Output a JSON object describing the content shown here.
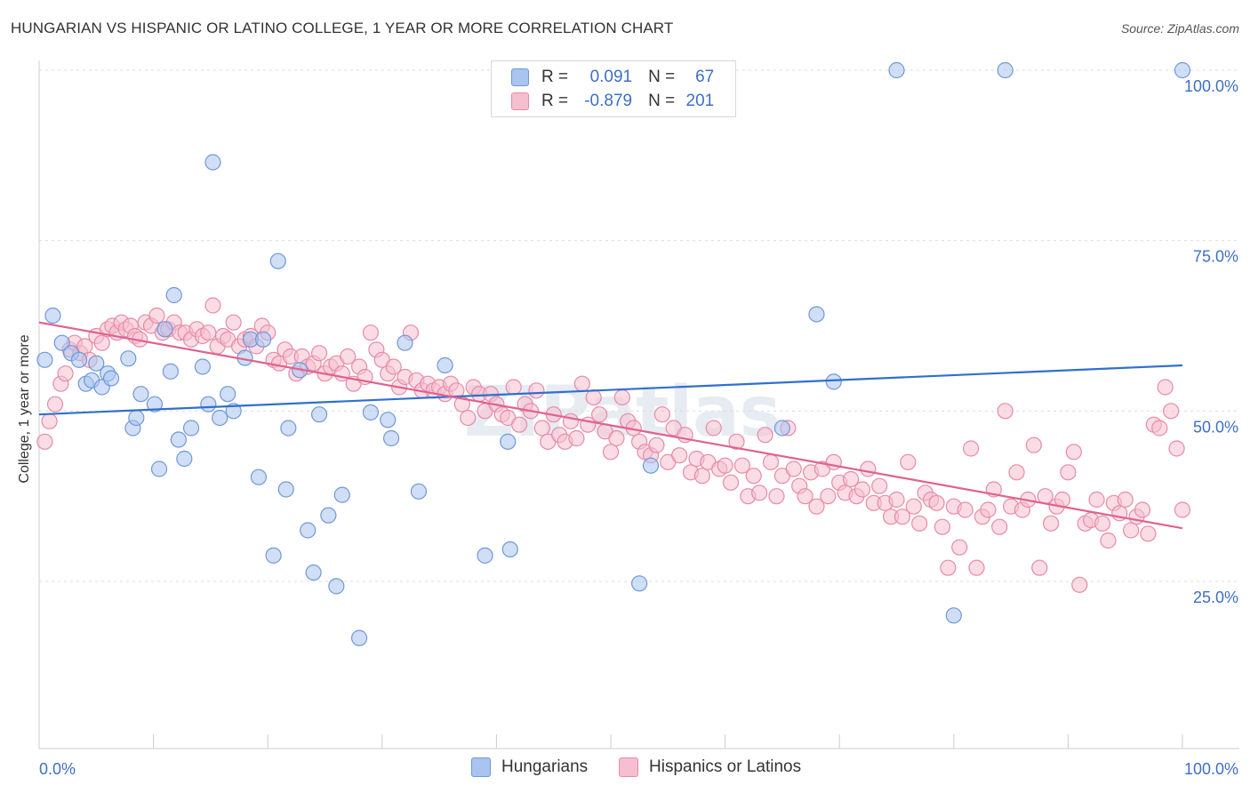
{
  "header": {
    "title": "HUNGARIAN VS HISPANIC OR LATINO COLLEGE, 1 YEAR OR MORE CORRELATION CHART",
    "source": "Source: ZipAtlas.com"
  },
  "watermark": "ZIPatlas",
  "legend_top": {
    "rows": [
      {
        "r_label": "R =",
        "r_value": "0.091",
        "n_label": "N =",
        "n_value": "67",
        "color": "#a9c4ee",
        "border": "#6f98d8"
      },
      {
        "r_label": "R =",
        "r_value": "-0.879",
        "n_label": "N =",
        "n_value": "201",
        "color": "#f6bfd0",
        "border": "#e88aa8"
      }
    ]
  },
  "chart_data": {
    "type": "scatter",
    "title": "HUNGARIAN VS HISPANIC OR LATINO COLLEGE, 1 YEAR OR MORE CORRELATION CHART",
    "xlabel": "",
    "ylabel": "College, 1 year or more",
    "xlim": [
      0,
      100
    ],
    "ylim": [
      0,
      104
    ],
    "x_tick_labels": [
      "0.0%",
      "100.0%"
    ],
    "y_tick_labels": [
      "25.0%",
      "50.0%",
      "75.0%",
      "100.0%"
    ],
    "y_ticks": [
      25,
      50,
      75,
      100
    ],
    "grid": true,
    "legend_position": "bottom",
    "series": [
      {
        "name": "Hungarians",
        "color": "#a9c4ee",
        "stroke": "#6f98d8",
        "trend": {
          "x": [
            0,
            100
          ],
          "y": [
            49.5,
            56.7
          ],
          "color": "#2f6fd0"
        },
        "points": [
          [
            0.5,
            57.5
          ],
          [
            1.2,
            64.0
          ],
          [
            2.0,
            60.0
          ],
          [
            2.8,
            58.5
          ],
          [
            3.5,
            57.5
          ],
          [
            4.1,
            54.0
          ],
          [
            4.6,
            54.5
          ],
          [
            5.0,
            57.0
          ],
          [
            5.5,
            53.5
          ],
          [
            6.0,
            55.5
          ],
          [
            6.3,
            54.8
          ],
          [
            7.8,
            57.7
          ],
          [
            8.2,
            47.5
          ],
          [
            8.5,
            49.0
          ],
          [
            8.9,
            52.5
          ],
          [
            10.1,
            51.0
          ],
          [
            10.5,
            41.5
          ],
          [
            11.0,
            62.0
          ],
          [
            11.5,
            55.8
          ],
          [
            11.8,
            67.0
          ],
          [
            12.2,
            45.8
          ],
          [
            12.7,
            43.0
          ],
          [
            13.3,
            47.5
          ],
          [
            14.3,
            56.5
          ],
          [
            14.8,
            51.0
          ],
          [
            15.2,
            86.5
          ],
          [
            15.8,
            49.0
          ],
          [
            16.5,
            52.5
          ],
          [
            17.0,
            50.0
          ],
          [
            18.0,
            57.8
          ],
          [
            18.5,
            60.5
          ],
          [
            19.2,
            40.3
          ],
          [
            19.6,
            60.5
          ],
          [
            20.5,
            28.8
          ],
          [
            20.9,
            72.0
          ],
          [
            21.6,
            38.5
          ],
          [
            21.8,
            47.5
          ],
          [
            22.8,
            56.0
          ],
          [
            23.5,
            32.5
          ],
          [
            24.0,
            26.3
          ],
          [
            24.5,
            49.5
          ],
          [
            25.3,
            34.7
          ],
          [
            26.0,
            24.3
          ],
          [
            26.5,
            37.7
          ],
          [
            28.0,
            16.7
          ],
          [
            29.0,
            49.8
          ],
          [
            30.5,
            48.7
          ],
          [
            30.8,
            46.0
          ],
          [
            32.0,
            60.0
          ],
          [
            33.2,
            38.2
          ],
          [
            35.5,
            56.7
          ],
          [
            39.0,
            28.8
          ],
          [
            41.0,
            45.5
          ],
          [
            41.2,
            29.7
          ],
          [
            52.5,
            24.7
          ],
          [
            53.5,
            42.0
          ],
          [
            65.0,
            47.5
          ],
          [
            68.0,
            64.2
          ],
          [
            69.5,
            54.3
          ],
          [
            75.0,
            100.0
          ],
          [
            80.0,
            20.0
          ],
          [
            84.5,
            100.0
          ],
          [
            100.0,
            100.0
          ]
        ]
      },
      {
        "name": "Hispanics or Latinos",
        "color": "#f6bfd0",
        "stroke": "#e88aa8",
        "trend": {
          "x": [
            0,
            100
          ],
          "y": [
            63.0,
            32.8
          ],
          "color": "#e0628e"
        },
        "points": [
          [
            0.5,
            45.5
          ],
          [
            0.9,
            48.5
          ],
          [
            1.4,
            51.0
          ],
          [
            1.9,
            54.0
          ],
          [
            2.3,
            55.5
          ],
          [
            2.7,
            59.0
          ],
          [
            3.1,
            60.0
          ],
          [
            3.6,
            58.5
          ],
          [
            4.0,
            59.5
          ],
          [
            4.4,
            57.5
          ],
          [
            5.0,
            61.0
          ],
          [
            5.5,
            60.0
          ],
          [
            6.0,
            62.0
          ],
          [
            6.4,
            62.5
          ],
          [
            6.8,
            61.5
          ],
          [
            7.2,
            63.0
          ],
          [
            7.6,
            62.0
          ],
          [
            8.0,
            62.5
          ],
          [
            8.4,
            61.0
          ],
          [
            8.8,
            60.5
          ],
          [
            9.3,
            63.0
          ],
          [
            9.8,
            62.5
          ],
          [
            10.3,
            64.0
          ],
          [
            10.8,
            61.5
          ],
          [
            11.3,
            62.0
          ],
          [
            11.8,
            63.0
          ],
          [
            12.3,
            61.5
          ],
          [
            12.8,
            61.5
          ],
          [
            13.3,
            60.5
          ],
          [
            13.8,
            62.0
          ],
          [
            14.3,
            61.0
          ],
          [
            14.8,
            61.5
          ],
          [
            15.2,
            65.5
          ],
          [
            15.6,
            59.5
          ],
          [
            16.1,
            61.0
          ],
          [
            16.5,
            60.5
          ],
          [
            17.0,
            63.0
          ],
          [
            17.5,
            59.5
          ],
          [
            18.0,
            60.5
          ],
          [
            18.5,
            61.0
          ],
          [
            19.0,
            59.5
          ],
          [
            19.5,
            62.5
          ],
          [
            20.0,
            61.5
          ],
          [
            20.5,
            57.5
          ],
          [
            21.0,
            57.0
          ],
          [
            21.5,
            59.0
          ],
          [
            22.0,
            58.0
          ],
          [
            22.5,
            55.5
          ],
          [
            23.0,
            58.0
          ],
          [
            23.5,
            56.5
          ],
          [
            24.0,
            57.0
          ],
          [
            24.5,
            58.5
          ],
          [
            25.0,
            55.5
          ],
          [
            25.5,
            56.5
          ],
          [
            26.0,
            57.0
          ],
          [
            26.5,
            55.5
          ],
          [
            27.0,
            58.0
          ],
          [
            27.5,
            54.0
          ],
          [
            28.0,
            56.5
          ],
          [
            28.5,
            55.0
          ],
          [
            29.0,
            61.5
          ],
          [
            29.5,
            59.0
          ],
          [
            30.0,
            57.5
          ],
          [
            30.5,
            55.5
          ],
          [
            31.0,
            56.5
          ],
          [
            31.5,
            53.5
          ],
          [
            32.0,
            55.0
          ],
          [
            32.5,
            61.5
          ],
          [
            33.0,
            54.5
          ],
          [
            33.5,
            53.0
          ],
          [
            34.0,
            54.0
          ],
          [
            34.5,
            53.0
          ],
          [
            35.0,
            53.5
          ],
          [
            35.5,
            52.5
          ],
          [
            36.0,
            54.0
          ],
          [
            36.5,
            53.0
          ],
          [
            37.0,
            51.0
          ],
          [
            37.5,
            49.0
          ],
          [
            38.0,
            53.5
          ],
          [
            38.5,
            52.5
          ],
          [
            39.0,
            50.0
          ],
          [
            39.5,
            52.5
          ],
          [
            40.0,
            51.0
          ],
          [
            40.5,
            49.5
          ],
          [
            41.0,
            49.0
          ],
          [
            41.5,
            53.5
          ],
          [
            42.0,
            48.0
          ],
          [
            42.5,
            51.0
          ],
          [
            43.0,
            50.0
          ],
          [
            43.5,
            53.0
          ],
          [
            44.0,
            47.5
          ],
          [
            44.5,
            45.5
          ],
          [
            45.0,
            49.5
          ],
          [
            45.5,
            46.5
          ],
          [
            46.0,
            45.5
          ],
          [
            46.5,
            48.5
          ],
          [
            47.0,
            46.0
          ],
          [
            47.5,
            54.0
          ],
          [
            48.0,
            48.0
          ],
          [
            48.5,
            52.0
          ],
          [
            49.0,
            49.5
          ],
          [
            49.5,
            47.0
          ],
          [
            50.0,
            44.0
          ],
          [
            50.5,
            46.0
          ],
          [
            51.0,
            52.0
          ],
          [
            51.5,
            48.5
          ],
          [
            52.0,
            47.5
          ],
          [
            52.5,
            45.5
          ],
          [
            53.0,
            44.0
          ],
          [
            53.5,
            43.5
          ],
          [
            54.0,
            45.0
          ],
          [
            54.5,
            49.5
          ],
          [
            55.0,
            42.5
          ],
          [
            55.5,
            47.5
          ],
          [
            56.0,
            43.5
          ],
          [
            56.5,
            46.5
          ],
          [
            57.0,
            41.0
          ],
          [
            57.5,
            43.0
          ],
          [
            58.0,
            40.5
          ],
          [
            58.5,
            42.5
          ],
          [
            59.0,
            47.5
          ],
          [
            59.5,
            41.5
          ],
          [
            60.0,
            42.0
          ],
          [
            60.5,
            39.5
          ],
          [
            61.0,
            45.5
          ],
          [
            61.5,
            42.0
          ],
          [
            62.0,
            37.5
          ],
          [
            62.5,
            40.5
          ],
          [
            63.0,
            38.0
          ],
          [
            63.5,
            46.5
          ],
          [
            64.0,
            42.5
          ],
          [
            64.5,
            37.5
          ],
          [
            65.0,
            40.5
          ],
          [
            65.5,
            47.5
          ],
          [
            66.0,
            41.5
          ],
          [
            66.5,
            39.0
          ],
          [
            67.0,
            37.5
          ],
          [
            67.5,
            41.0
          ],
          [
            68.0,
            36.0
          ],
          [
            68.5,
            41.5
          ],
          [
            69.0,
            37.5
          ],
          [
            69.5,
            42.5
          ],
          [
            70.0,
            39.5
          ],
          [
            70.5,
            38.0
          ],
          [
            71.0,
            40.0
          ],
          [
            71.5,
            37.5
          ],
          [
            72.0,
            38.5
          ],
          [
            72.5,
            41.5
          ],
          [
            73.0,
            36.5
          ],
          [
            73.5,
            39.0
          ],
          [
            74.0,
            36.5
          ],
          [
            74.5,
            34.5
          ],
          [
            75.0,
            37.0
          ],
          [
            75.5,
            34.5
          ],
          [
            76.0,
            42.5
          ],
          [
            76.5,
            36.0
          ],
          [
            77.0,
            33.5
          ],
          [
            77.5,
            38.0
          ],
          [
            78.0,
            37.0
          ],
          [
            78.5,
            36.5
          ],
          [
            79.0,
            33.0
          ],
          [
            79.5,
            27.0
          ],
          [
            80.0,
            36.0
          ],
          [
            80.5,
            30.0
          ],
          [
            81.0,
            35.5
          ],
          [
            81.5,
            44.5
          ],
          [
            82.0,
            27.0
          ],
          [
            82.5,
            34.5
          ],
          [
            83.0,
            35.5
          ],
          [
            83.5,
            38.5
          ],
          [
            84.0,
            33.0
          ],
          [
            84.5,
            50.0
          ],
          [
            85.0,
            36.0
          ],
          [
            85.5,
            41.0
          ],
          [
            86.0,
            35.5
          ],
          [
            86.5,
            37.0
          ],
          [
            87.0,
            45.0
          ],
          [
            87.5,
            27.0
          ],
          [
            88.0,
            37.5
          ],
          [
            88.5,
            33.5
          ],
          [
            89.0,
            36.0
          ],
          [
            89.5,
            37.0
          ],
          [
            90.0,
            41.0
          ],
          [
            90.5,
            44.0
          ],
          [
            91.0,
            24.5
          ],
          [
            91.5,
            33.5
          ],
          [
            92.0,
            34.0
          ],
          [
            92.5,
            37.0
          ],
          [
            93.0,
            33.5
          ],
          [
            93.5,
            31.0
          ],
          [
            94.0,
            36.5
          ],
          [
            94.5,
            35.0
          ],
          [
            95.0,
            37.0
          ],
          [
            95.5,
            32.5
          ],
          [
            96.0,
            34.5
          ],
          [
            96.5,
            35.5
          ],
          [
            97.0,
            32.0
          ],
          [
            97.5,
            48.0
          ],
          [
            98.0,
            47.5
          ],
          [
            98.5,
            53.5
          ],
          [
            99.0,
            50.0
          ],
          [
            99.5,
            44.5
          ],
          [
            100.0,
            35.5
          ]
        ]
      }
    ]
  },
  "bottom_legend": {
    "items": [
      {
        "label": "Hungarians",
        "color": "#a9c4ee",
        "border": "#6f98d8"
      },
      {
        "label": "Hispanics or Latinos",
        "color": "#f6bfd0",
        "border": "#e88aa8"
      }
    ]
  }
}
